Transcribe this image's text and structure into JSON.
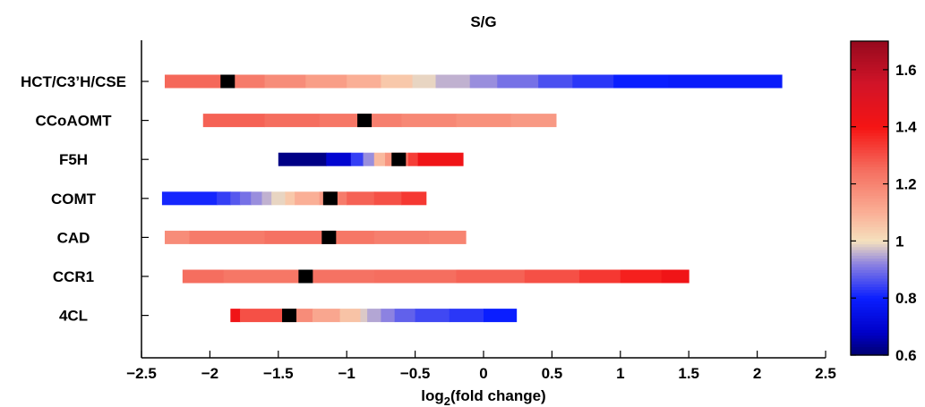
{
  "chart_data": {
    "type": "heatmap",
    "title": "S/G",
    "xlabel": "log",
    "xlabel_sub": "2",
    "xlabel_tail": "(fold change)",
    "xlim": [
      -2.5,
      2.5
    ],
    "xticks": [
      -2.5,
      -2,
      -1.5,
      -1,
      -0.5,
      0,
      0.5,
      1,
      1.5,
      2,
      2.5
    ],
    "xtick_labels": [
      "−2.5",
      "−2",
      "−1.5",
      "−1",
      "−0.5",
      "0",
      "0.5",
      "1",
      "1.5",
      "2",
      "2.5"
    ],
    "colorbar": {
      "min": 0.6,
      "max": 1.7,
      "ticks": [
        0.6,
        0.8,
        1,
        1.2,
        1.4,
        1.6
      ],
      "tick_labels": [
        "0.6",
        "0.8",
        "1",
        "1.2",
        "1.4",
        "1.6"
      ]
    },
    "genes": [
      {
        "name": "HCT/C3’H/CSE",
        "median": -1.87,
        "segments": [
          [
            -2.33,
            -1.92,
            1.26
          ],
          [
            -1.92,
            -1.87,
            1.24
          ],
          [
            -1.87,
            -1.6,
            1.22
          ],
          [
            -1.6,
            -1.3,
            1.18
          ],
          [
            -1.3,
            -1.0,
            1.14
          ],
          [
            -1.0,
            -0.75,
            1.1
          ],
          [
            -0.75,
            -0.52,
            1.05
          ],
          [
            -0.52,
            -0.35,
            0.99
          ],
          [
            -0.35,
            -0.1,
            0.96
          ],
          [
            -0.1,
            0.1,
            0.93
          ],
          [
            0.1,
            0.4,
            0.9
          ],
          [
            0.4,
            0.65,
            0.86
          ],
          [
            0.65,
            0.95,
            0.83
          ],
          [
            0.95,
            1.35,
            0.8
          ],
          [
            1.35,
            2.18,
            0.79
          ]
        ]
      },
      {
        "name": "CCoAOMT",
        "median": -0.87,
        "segments": [
          [
            -2.05,
            -1.6,
            1.27
          ],
          [
            -1.6,
            -1.2,
            1.25
          ],
          [
            -1.2,
            -0.87,
            1.23
          ],
          [
            -0.87,
            -0.6,
            1.21
          ],
          [
            -0.6,
            -0.2,
            1.19
          ],
          [
            -0.2,
            0.2,
            1.17
          ],
          [
            0.2,
            0.53,
            1.15
          ]
        ]
      },
      {
        "name": "F5H",
        "median": -0.62,
        "segments": [
          [
            -1.5,
            -1.15,
            0.62
          ],
          [
            -1.15,
            -0.97,
            0.7
          ],
          [
            -0.97,
            -0.88,
            0.84
          ],
          [
            -0.88,
            -0.8,
            0.93
          ],
          [
            -0.8,
            -0.72,
            1.08
          ],
          [
            -0.72,
            -0.62,
            1.16
          ],
          [
            -0.62,
            -0.55,
            1.25
          ],
          [
            -0.55,
            -0.48,
            1.33
          ],
          [
            -0.48,
            -0.15,
            1.42
          ]
        ]
      },
      {
        "name": "COMT",
        "median": -1.12,
        "segments": [
          [
            -2.35,
            -1.95,
            0.81
          ],
          [
            -1.95,
            -1.85,
            0.84
          ],
          [
            -1.85,
            -1.78,
            0.87
          ],
          [
            -1.78,
            -1.7,
            0.9
          ],
          [
            -1.7,
            -1.62,
            0.93
          ],
          [
            -1.62,
            -1.55,
            0.96
          ],
          [
            -1.55,
            -1.45,
            0.99
          ],
          [
            -1.45,
            -1.38,
            1.05
          ],
          [
            -1.38,
            -1.2,
            1.1
          ],
          [
            -1.2,
            -1.12,
            1.15
          ],
          [
            -1.12,
            -1.0,
            1.22
          ],
          [
            -1.0,
            -0.8,
            1.27
          ],
          [
            -0.8,
            -0.6,
            1.3
          ],
          [
            -0.6,
            -0.42,
            1.34
          ]
        ]
      },
      {
        "name": "CAD",
        "median": -1.13,
        "segments": [
          [
            -2.33,
            -2.15,
            1.18
          ],
          [
            -2.15,
            -1.6,
            1.22
          ],
          [
            -1.6,
            -1.13,
            1.24
          ],
          [
            -1.13,
            -0.8,
            1.23
          ],
          [
            -0.8,
            -0.4,
            1.21
          ],
          [
            -0.4,
            -0.13,
            1.2
          ]
        ]
      },
      {
        "name": "CCR1",
        "median": -1.3,
        "segments": [
          [
            -2.2,
            -1.9,
            1.25
          ],
          [
            -1.9,
            -1.3,
            1.23
          ],
          [
            -1.3,
            -0.8,
            1.24
          ],
          [
            -0.8,
            -0.2,
            1.25
          ],
          [
            -0.2,
            0.3,
            1.27
          ],
          [
            0.3,
            0.7,
            1.3
          ],
          [
            0.7,
            1.0,
            1.34
          ],
          [
            1.0,
            1.3,
            1.38
          ],
          [
            1.3,
            1.5,
            1.42
          ]
        ]
      },
      {
        "name": "4CL",
        "median": -1.42,
        "segments": [
          [
            -1.85,
            -1.78,
            1.42
          ],
          [
            -1.78,
            -1.42,
            1.3
          ],
          [
            -1.42,
            -1.25,
            1.18
          ],
          [
            -1.25,
            -1.05,
            1.12
          ],
          [
            -1.05,
            -0.9,
            1.06
          ],
          [
            -0.9,
            -0.85,
            0.98
          ],
          [
            -0.85,
            -0.75,
            0.95
          ],
          [
            -0.75,
            -0.65,
            0.92
          ],
          [
            -0.65,
            -0.5,
            0.88
          ],
          [
            -0.5,
            -0.25,
            0.85
          ],
          [
            -0.25,
            0.0,
            0.83
          ],
          [
            0.0,
            0.24,
            0.8
          ]
        ]
      }
    ],
    "colors": {
      "median_marker": "#000000",
      "axis": "#000000"
    }
  }
}
